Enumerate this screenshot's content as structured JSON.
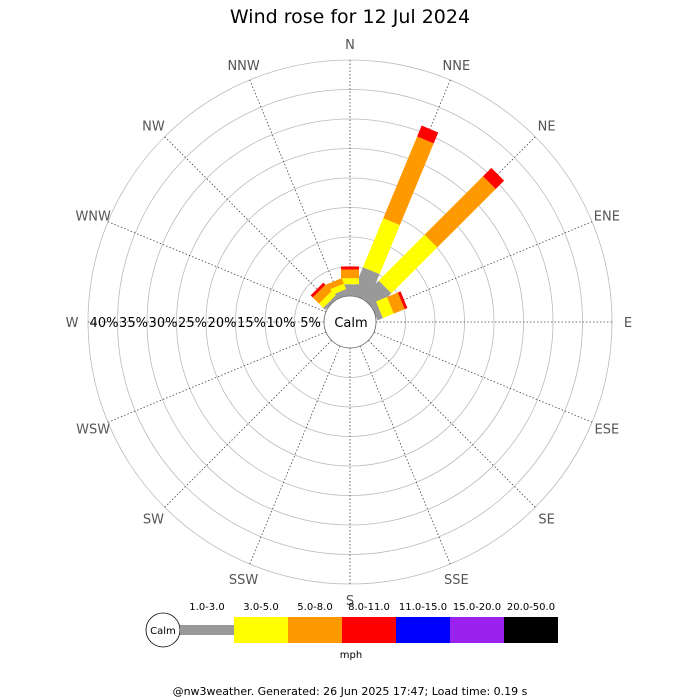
{
  "chart_data": {
    "type": "wind-rose",
    "title": "Wind rose for 12 Jul 2024",
    "directions": [
      "N",
      "NNE",
      "NE",
      "ENE",
      "E",
      "ESE",
      "SE",
      "SSE",
      "S",
      "SSW",
      "SW",
      "WSW",
      "W",
      "WNW",
      "NW",
      "NNW"
    ],
    "ring_labels": [
      "5%",
      "10%",
      "15%",
      "20%",
      "25%",
      "30%",
      "35%",
      "40%"
    ],
    "rmax_percent": 40,
    "calm_label": "Calm",
    "speed_unit": "mph",
    "speed_bins": [
      {
        "label": "1.0-3.0",
        "color": "#999999"
      },
      {
        "label": "3.0-5.0",
        "color": "#ffff00"
      },
      {
        "label": "5.0-8.0",
        "color": "#ff9900"
      },
      {
        "label": "8.0-11.0",
        "color": "#ff0000"
      },
      {
        "label": "11.0-15.0",
        "color": "#0000ff"
      },
      {
        "label": "15.0-20.0",
        "color": "#9922ee"
      },
      {
        "label": "20.0-50.0",
        "color": "#000000"
      }
    ],
    "series": [
      {
        "direction": "NNE",
        "values": [
          5,
          9,
          15,
          2
        ]
      },
      {
        "direction": "NE",
        "values": [
          4,
          11,
          14,
          2
        ]
      },
      {
        "direction": "ENE",
        "values": [
          1,
          2,
          2,
          0.5
        ]
      },
      {
        "direction": "N",
        "values": [
          2,
          1,
          1.5,
          0.5
        ]
      },
      {
        "direction": "NNW",
        "values": [
          1,
          1,
          1,
          0
        ]
      },
      {
        "direction": "NW",
        "values": [
          0.5,
          1,
          1.5,
          0.5
        ]
      }
    ]
  },
  "footer": "@nw3weather. Generated: 26 Jun 2025 17:47; Load time: 0.19 s"
}
